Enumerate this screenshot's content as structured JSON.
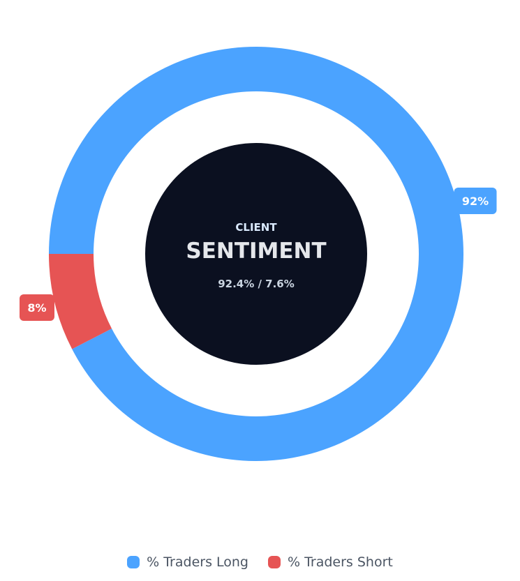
{
  "chart_data": {
    "type": "pie",
    "subtype": "donut",
    "categories": [
      "% Traders Long",
      "% Traders Short"
    ],
    "values": [
      92.4,
      7.6
    ],
    "data_labels": [
      "92%",
      "8%"
    ],
    "center": {
      "overline": "CLIENT",
      "title": "SENTIMENT",
      "summary": "92.4% / 7.6%"
    },
    "colors": {
      "long": "#4ba3ff",
      "short": "#e65454",
      "center_bg": "#0b1020",
      "label_text": "#ffffff",
      "center_text": "#e5e7eb",
      "legend_text": "#4b5563"
    },
    "legend_position": "bottom",
    "grid": false
  }
}
